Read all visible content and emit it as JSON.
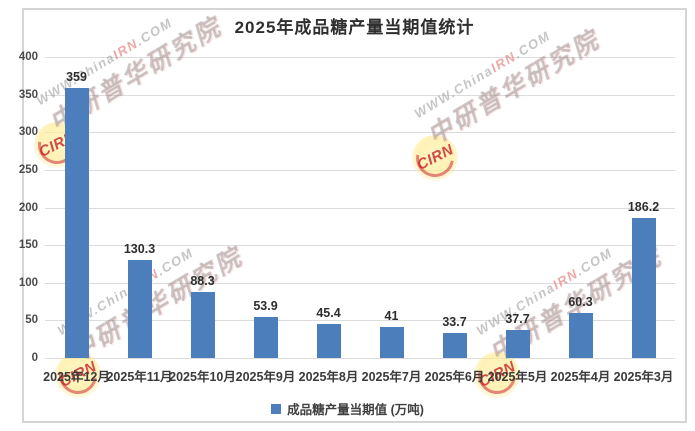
{
  "title": "2025年成品糖产量当期值统计",
  "legend": {
    "label": "成品糖产量当期值 (万吨)"
  },
  "watermark": {
    "badge": "CIRN",
    "line1_pre": "WWW.China",
    "line1_mid": "IRN",
    "line1_post": ".COM",
    "line2": "中研普华研究院"
  },
  "colors": {
    "bar": "#4d7ebc",
    "gridline": "#dcdcdc",
    "frame_border": "#d5d5d5",
    "title_text": "#2f2f2f",
    "watermark_red": "#c82d37"
  },
  "chart_data": {
    "type": "bar",
    "title": "2025年成品糖产量当期值统计",
    "series_name": "成品糖产量当期值 (万吨)",
    "categories": [
      "2025年12月",
      "2025年11月",
      "2025年10月",
      "2025年9月",
      "2025年8月",
      "2025年7月",
      "2025年6月",
      "2025年5月",
      "2025年4月",
      "2025年3月"
    ],
    "values": [
      359,
      130.3,
      88.3,
      53.9,
      45.4,
      41,
      33.7,
      37.7,
      60.3,
      186.2
    ],
    "value_labels": [
      "359",
      "130.3",
      "88.3",
      "53.9",
      "45.4",
      "41",
      "33.7",
      "37.7",
      "60.3",
      "186.2"
    ],
    "xlabel": "",
    "ylabel": "",
    "ylim": [
      0,
      400
    ],
    "yticks": [
      0,
      50,
      100,
      150,
      200,
      250,
      300,
      350,
      400
    ],
    "grid": true,
    "legend_position": "bottom"
  }
}
